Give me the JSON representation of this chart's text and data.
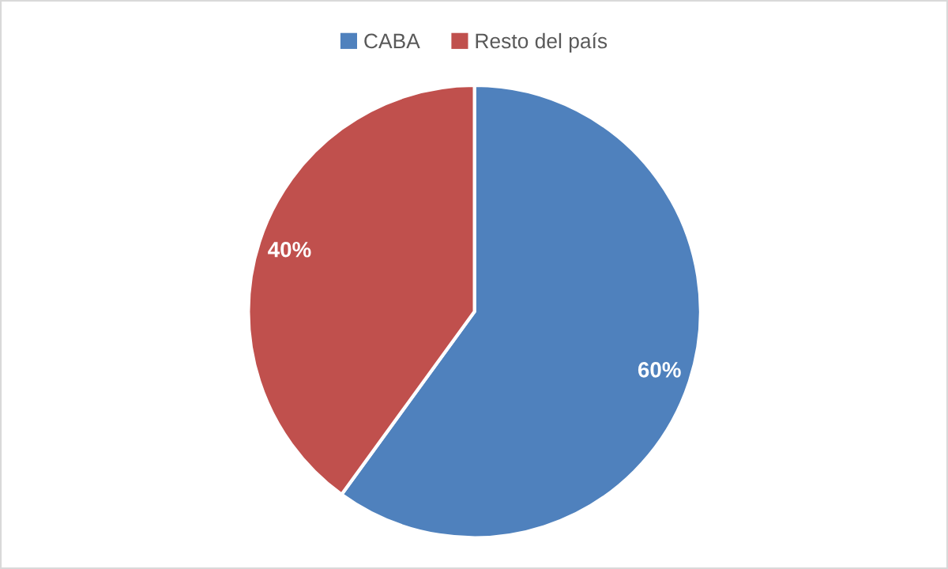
{
  "chart_data": {
    "type": "pie",
    "categories": [
      "CABA",
      "Resto del país"
    ],
    "values": [
      60,
      40
    ],
    "value_labels": [
      "60%",
      "40%"
    ],
    "colors": [
      "#4f81bd",
      "#c0504d"
    ],
    "legend": "top"
  }
}
